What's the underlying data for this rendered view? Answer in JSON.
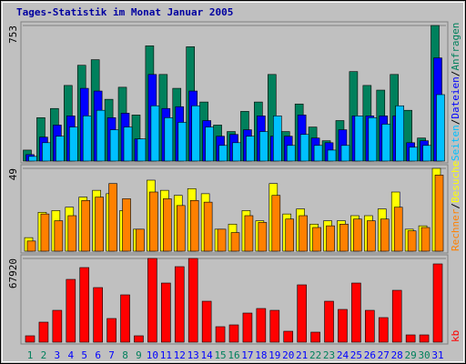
{
  "chart_data": [
    {
      "type": "bar",
      "title": "Tages-Statistik im Monat Januar 2005",
      "separator": "/",
      "ylim": [
        0,
        753
      ],
      "yticks": [
        753
      ],
      "series": [
        {
          "name": "Anfragen",
          "color": "#00805c",
          "values": [
            61,
            241,
            292,
            420,
            532,
            563,
            343,
            410,
            256,
            640,
            481,
            404,
            635,
            328,
            200,
            164,
            276,
            328,
            481,
            164,
            317,
            189,
            113,
            225,
            497,
            420,
            394,
            481,
            282,
            128,
            753
          ]
        },
        {
          "name": "Dateien",
          "color": "#0000ff",
          "values": [
            36,
            133,
            200,
            251,
            404,
            389,
            241,
            266,
            123,
            481,
            292,
            302,
            389,
            225,
            138,
            148,
            174,
            251,
            138,
            138,
            256,
            128,
            102,
            174,
            251,
            251,
            251,
            251,
            102,
            113,
            573
          ]
        },
        {
          "name": "Seiten",
          "color": "#00c0ff",
          "values": [
            26,
            102,
            138,
            189,
            251,
            282,
            174,
            189,
            123,
            307,
            241,
            215,
            307,
            189,
            87,
            102,
            138,
            164,
            251,
            87,
            148,
            87,
            61,
            87,
            251,
            241,
            205,
            307,
            77,
            87,
            369
          ]
        }
      ]
    },
    {
      "type": "bar",
      "separator": "/",
      "ylim": [
        0,
        49
      ],
      "yticks": [
        49
      ],
      "series": [
        {
          "name": "Besuche",
          "color": "#ffff00",
          "values": [
            8,
            23,
            24,
            26,
            32,
            36,
            34,
            24,
            13,
            42,
            36,
            33,
            37,
            34,
            13,
            16,
            24,
            18,
            40,
            22,
            25,
            16,
            18,
            18,
            21,
            21,
            25,
            35,
            13,
            15,
            49
          ]
        },
        {
          "name": "Rechner",
          "color": "#ff8000",
          "values": [
            6,
            22,
            18,
            21,
            30,
            32,
            40,
            31,
            13,
            35,
            31,
            27,
            30,
            29,
            13,
            11,
            21,
            17,
            33,
            19,
            21,
            14,
            15,
            16,
            19,
            18,
            19,
            26,
            12,
            14,
            45
          ]
        }
      ]
    },
    {
      "type": "bar",
      "ylim": [
        0,
        67920
      ],
      "yticks": [
        67920
      ],
      "categories": [
        "1",
        "2",
        "3",
        "4",
        "5",
        "6",
        "7",
        "8",
        "9",
        "10",
        "11",
        "12",
        "13",
        "14",
        "15",
        "16",
        "17",
        "18",
        "19",
        "20",
        "21",
        "22",
        "23",
        "24",
        "25",
        "26",
        "27",
        "28",
        "29",
        "30",
        "31"
      ],
      "highlight_categories": [
        "1",
        "2",
        "8",
        "9",
        "15",
        "16",
        "22",
        "23",
        "29",
        "30"
      ],
      "highlight_color": "#00805c",
      "category_color": "#0000ff",
      "series": [
        {
          "name": "kb",
          "color": "#ff0000",
          "values": [
            5170,
            16240,
            25830,
            50930,
            60520,
            44280,
            19190,
            38380,
            5170,
            67920,
            47970,
            61260,
            67920,
            33210,
            12550,
            14020,
            23620,
            27310,
            25830,
            8860,
            46500,
            8120,
            33210,
            26570,
            47970,
            25830,
            19930,
            42070,
            5900,
            5900,
            63490
          ]
        }
      ]
    }
  ]
}
